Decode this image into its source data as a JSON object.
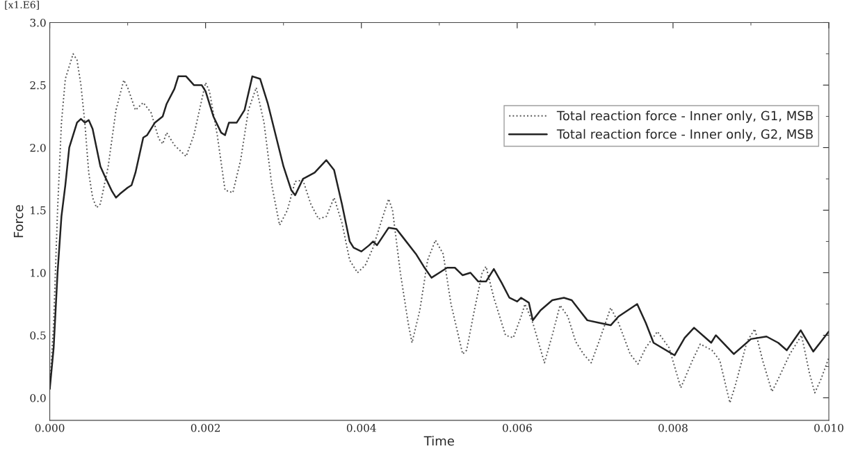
{
  "chart_data": {
    "type": "line",
    "xlabel": "Time",
    "ylabel": "Force",
    "annotations": [
      "[x1.E6]"
    ],
    "xlim": [
      0,
      0.01
    ],
    "ylim": [
      -0.18,
      3.0
    ],
    "xticks": [
      {
        "value": 0,
        "label": "0.000"
      },
      {
        "value": 0.002,
        "label": "0.002"
      },
      {
        "value": 0.004,
        "label": "0.004"
      },
      {
        "value": 0.006,
        "label": "0.006"
      },
      {
        "value": 0.008,
        "label": "0.008"
      },
      {
        "value": 0.01,
        "label": "0.010"
      }
    ],
    "yticks": [
      {
        "value": 0,
        "label": "0.0"
      },
      {
        "value": 0.5,
        "label": "0.5"
      },
      {
        "value": 1.0,
        "label": "1.0"
      },
      {
        "value": 1.5,
        "label": "1.5"
      },
      {
        "value": 2.0,
        "label": "2.0"
      },
      {
        "value": 2.5,
        "label": "2.5"
      },
      {
        "value": 3.0,
        "label": "3.0"
      }
    ],
    "grid": false,
    "legend": "right",
    "marker": "none",
    "series": [
      {
        "name": "Total reaction force - Inner only, G1, MSB",
        "color": "#555555",
        "line_style": "dotted",
        "x": [
          0,
          5e-05,
          0.0001,
          0.00015,
          0.0002,
          0.0003,
          0.00035,
          0.0004,
          0.00045,
          0.0005,
          0.00055,
          0.0006,
          0.00065,
          0.00075,
          0.00085,
          0.00095,
          0.001,
          0.0011,
          0.0012,
          0.0013,
          0.0014,
          0.00145,
          0.0015,
          0.0016,
          0.00175,
          0.00185,
          0.002,
          0.00205,
          0.00215,
          0.00225,
          0.00235,
          0.00245,
          0.00255,
          0.00265,
          0.00275,
          0.00285,
          0.00295,
          0.00305,
          0.00315,
          0.00325,
          0.00335,
          0.00345,
          0.00355,
          0.00365,
          0.00375,
          0.00385,
          0.00395,
          0.00405,
          0.00415,
          0.00425,
          0.00435,
          0.0044,
          0.0045,
          0.0046,
          0.00465,
          0.00475,
          0.00485,
          0.00495,
          0.00505,
          0.00515,
          0.0053,
          0.00535,
          0.00545,
          0.00555,
          0.0056,
          0.0057,
          0.00575,
          0.00585,
          0.00595,
          0.00605,
          0.0061,
          0.0062,
          0.00635,
          0.00645,
          0.00655,
          0.00665,
          0.00675,
          0.00685,
          0.00695,
          0.00705,
          0.0072,
          0.0073,
          0.00745,
          0.00755,
          0.00765,
          0.0078,
          0.00795,
          0.0081,
          0.00825,
          0.00835,
          0.0085,
          0.0086,
          0.00873,
          0.0088,
          0.00895,
          0.00905,
          0.00915,
          0.00927,
          0.00935,
          0.0095,
          0.00965,
          0.00975,
          0.00982,
          0.0099,
          0.01
        ],
        "values": [
          0.07,
          0.6,
          1.5,
          2.2,
          2.55,
          2.75,
          2.7,
          2.5,
          2.2,
          1.8,
          1.6,
          1.52,
          1.55,
          1.85,
          2.3,
          2.54,
          2.48,
          2.3,
          2.36,
          2.28,
          2.07,
          2.03,
          2.12,
          2.02,
          1.93,
          2.1,
          2.52,
          2.45,
          2.1,
          1.66,
          1.64,
          1.9,
          2.3,
          2.48,
          2.2,
          1.7,
          1.38,
          1.5,
          1.73,
          1.74,
          1.55,
          1.43,
          1.45,
          1.6,
          1.4,
          1.1,
          1.0,
          1.06,
          1.2,
          1.4,
          1.59,
          1.5,
          1.0,
          0.6,
          0.44,
          0.7,
          1.1,
          1.26,
          1.15,
          0.75,
          0.35,
          0.38,
          0.7,
          1.0,
          1.05,
          0.8,
          0.7,
          0.5,
          0.48,
          0.65,
          0.75,
          0.6,
          0.28,
          0.5,
          0.74,
          0.65,
          0.45,
          0.35,
          0.28,
          0.45,
          0.72,
          0.6,
          0.35,
          0.27,
          0.4,
          0.53,
          0.4,
          0.08,
          0.3,
          0.43,
          0.38,
          0.3,
          -0.04,
          0.1,
          0.45,
          0.55,
          0.3,
          0.05,
          0.15,
          0.35,
          0.5,
          0.2,
          0.04,
          0.15,
          0.32
        ]
      },
      {
        "name": "Total reaction force - Inner only, G2, MSB",
        "color": "#222222",
        "line_style": "solid",
        "x": [
          0,
          5e-05,
          0.0001,
          0.00015,
          0.0002,
          0.00025,
          0.0003,
          0.00035,
          0.0004,
          0.00045,
          0.0005,
          0.00055,
          0.0006,
          0.00065,
          0.0007,
          0.0008,
          0.00085,
          0.0009,
          0.001,
          0.00105,
          0.0011,
          0.0012,
          0.00125,
          0.00135,
          0.00145,
          0.0015,
          0.0016,
          0.00165,
          0.00175,
          0.00185,
          0.00195,
          0.002,
          0.0021,
          0.0022,
          0.00225,
          0.0023,
          0.0024,
          0.0025,
          0.0026,
          0.0027,
          0.0028,
          0.0029,
          0.003,
          0.0031,
          0.00315,
          0.00325,
          0.0034,
          0.00355,
          0.00365,
          0.00375,
          0.00385,
          0.0039,
          0.004,
          0.0041,
          0.00415,
          0.0042,
          0.00435,
          0.00445,
          0.00455,
          0.0047,
          0.0048,
          0.0049,
          0.005,
          0.0051,
          0.0052,
          0.0053,
          0.0054,
          0.0055,
          0.0056,
          0.0057,
          0.0058,
          0.0059,
          0.006,
          0.00605,
          0.00615,
          0.0062,
          0.0063,
          0.00645,
          0.0066,
          0.0067,
          0.0068,
          0.0069,
          0.00705,
          0.0072,
          0.0073,
          0.00754,
          0.00765,
          0.00775,
          0.00802,
          0.00815,
          0.00827,
          0.00849,
          0.00855,
          0.00878,
          0.009,
          0.0092,
          0.00935,
          0.00946,
          0.00964,
          0.0098,
          0.0099,
          0.01
        ],
        "values": [
          0.07,
          0.4,
          1.0,
          1.45,
          1.7,
          2.0,
          2.1,
          2.2,
          2.23,
          2.2,
          2.22,
          2.15,
          2.0,
          1.85,
          1.78,
          1.65,
          1.6,
          1.63,
          1.68,
          1.7,
          1.8,
          2.08,
          2.1,
          2.2,
          2.25,
          2.35,
          2.47,
          2.57,
          2.57,
          2.5,
          2.5,
          2.45,
          2.25,
          2.12,
          2.1,
          2.2,
          2.2,
          2.3,
          2.57,
          2.55,
          2.35,
          2.1,
          1.85,
          1.66,
          1.62,
          1.75,
          1.8,
          1.9,
          1.82,
          1.55,
          1.25,
          1.2,
          1.17,
          1.22,
          1.25,
          1.22,
          1.36,
          1.35,
          1.27,
          1.15,
          1.05,
          0.96,
          1.0,
          1.04,
          1.04,
          0.98,
          1.0,
          0.93,
          0.93,
          1.03,
          0.92,
          0.8,
          0.77,
          0.8,
          0.76,
          0.62,
          0.7,
          0.78,
          0.8,
          0.78,
          0.7,
          0.62,
          0.6,
          0.58,
          0.65,
          0.75,
          0.6,
          0.44,
          0.34,
          0.48,
          0.56,
          0.44,
          0.5,
          0.35,
          0.47,
          0.49,
          0.44,
          0.38,
          0.54,
          0.37,
          0.45,
          0.53
        ]
      }
    ]
  }
}
